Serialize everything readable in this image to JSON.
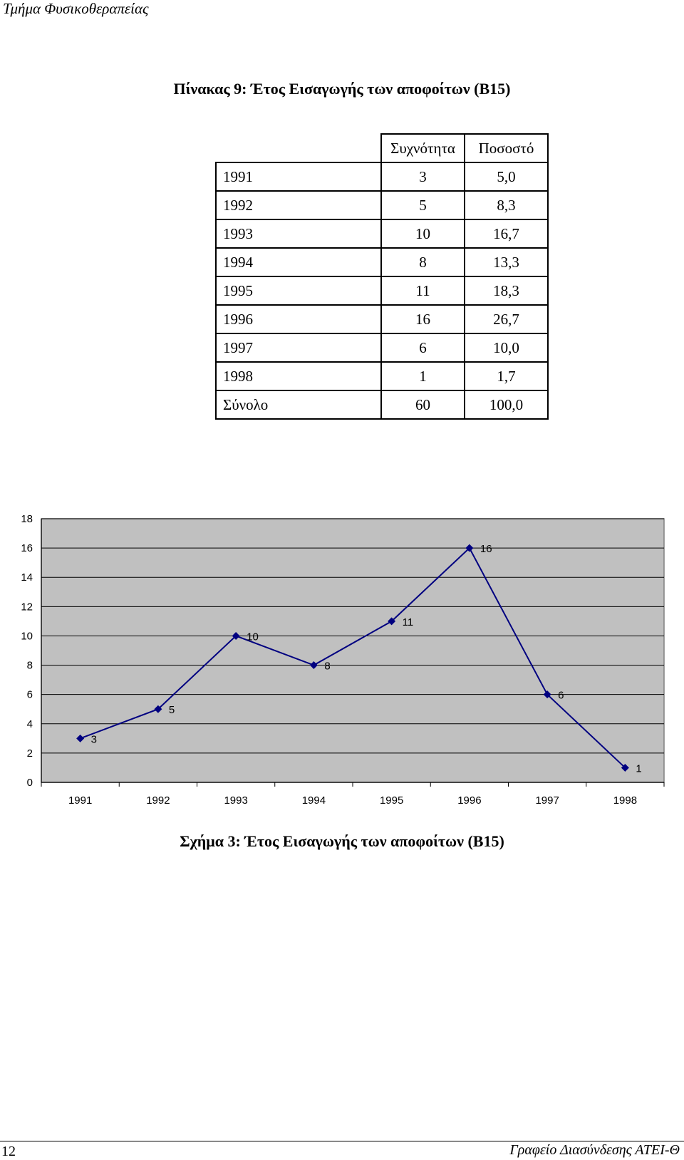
{
  "header": {
    "department": "Τμήμα Φυσικοθεραπείας"
  },
  "table": {
    "title": "Πίνακας 9:  Έτος Εισαγωγής των αποφοίτων (Β15)",
    "columns": [
      "",
      "Συχνότητα",
      "Ποσοστό"
    ],
    "rows": [
      [
        "1991",
        "3",
        "5,0"
      ],
      [
        "1992",
        "5",
        "8,3"
      ],
      [
        "1993",
        "10",
        "16,7"
      ],
      [
        "1994",
        "8",
        "13,3"
      ],
      [
        "1995",
        "11",
        "18,3"
      ],
      [
        "1996",
        "16",
        "26,7"
      ],
      [
        "1997",
        "6",
        "10,0"
      ],
      [
        "1998",
        "1",
        "1,7"
      ],
      [
        "Σύνολο",
        "60",
        "100,0"
      ]
    ]
  },
  "chart_data": {
    "type": "line",
    "title": "",
    "xlabel": "",
    "ylabel": "",
    "categories": [
      "1991",
      "1992",
      "1993",
      "1994",
      "1995",
      "1996",
      "1997",
      "1998"
    ],
    "series": [
      {
        "name": "Συχνότητα",
        "values": [
          3,
          5,
          10,
          8,
          11,
          16,
          6,
          1
        ],
        "data_labels": [
          "3",
          "5",
          "10",
          "8",
          "11",
          "16",
          "6",
          "1"
        ]
      }
    ],
    "ylim": [
      0,
      18
    ],
    "yticks": [
      0,
      2,
      4,
      6,
      8,
      10,
      12,
      14,
      16,
      18
    ],
    "grid": true,
    "legend": "none",
    "colors": {
      "line": "#000080",
      "plot_bg": "#c0c0c0",
      "grid": "#000000"
    }
  },
  "figure": {
    "caption": "Σχήμα 3: Έτος Εισαγωγής των αποφοίτων (Β15)"
  },
  "footer": {
    "page_number": "12",
    "office": "Γραφείο Διασύνδεσης ΑΤΕΙ-Θ"
  }
}
